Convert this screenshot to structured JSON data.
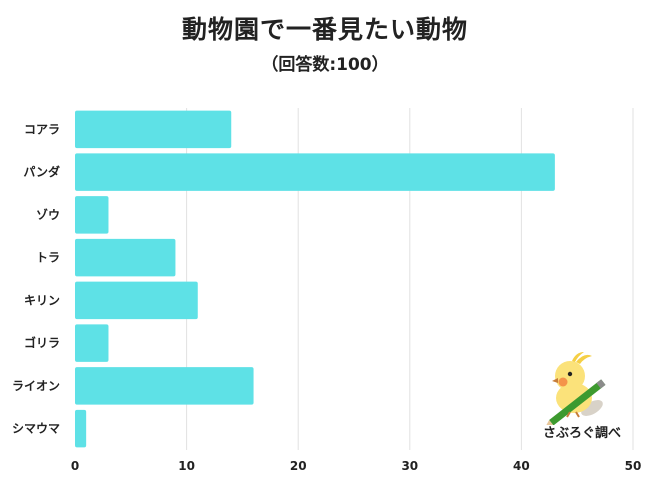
{
  "page": {
    "title": "動物園で一番見たい動物",
    "subtitle": "（回答数:100）",
    "logo_text": "さぶろぐ調べ"
  },
  "colors": {
    "bar": "#5EE1E6",
    "grid": "#e2e2e2",
    "text": "#222222"
  },
  "chart_data": {
    "type": "bar",
    "orientation": "horizontal",
    "title": "動物園で一番見たい動物",
    "subtitle": "（回答数:100）",
    "categories": [
      "コアラ",
      "パンダ",
      "ゾウ",
      "トラ",
      "キリン",
      "ゴリラ",
      "ライオン",
      "シマウマ"
    ],
    "values": [
      14,
      43,
      3,
      9,
      11,
      3,
      16,
      1
    ],
    "xlim": [
      0,
      50
    ],
    "xticks": [
      0,
      10,
      20,
      30,
      40,
      50
    ],
    "grid": true
  }
}
